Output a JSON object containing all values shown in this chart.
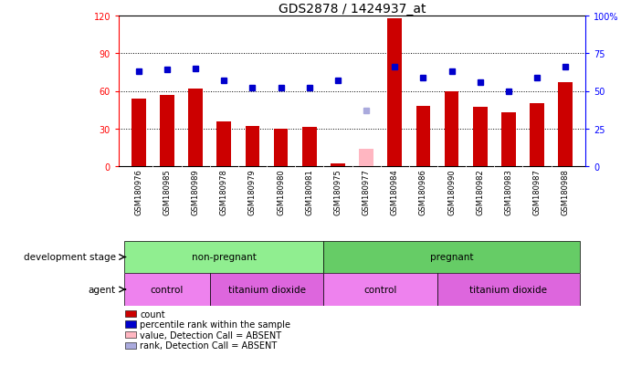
{
  "title": "GDS2878 / 1424937_at",
  "samples": [
    "GSM180976",
    "GSM180985",
    "GSM180989",
    "GSM180978",
    "GSM180979",
    "GSM180980",
    "GSM180981",
    "GSM180975",
    "GSM180977",
    "GSM180984",
    "GSM180986",
    "GSM180990",
    "GSM180982",
    "GSM180983",
    "GSM180987",
    "GSM180988"
  ],
  "counts": [
    54,
    57,
    62,
    36,
    32,
    30,
    31,
    2,
    0,
    118,
    48,
    60,
    47,
    43,
    50,
    67
  ],
  "ranks": [
    63,
    64,
    65,
    57,
    52,
    52,
    52,
    57,
    37,
    66,
    59,
    63,
    56,
    50,
    59,
    66
  ],
  "absent_count": [
    null,
    null,
    null,
    null,
    null,
    null,
    null,
    null,
    14,
    null,
    null,
    null,
    null,
    null,
    null,
    null
  ],
  "absent_rank": [
    null,
    null,
    null,
    null,
    null,
    null,
    null,
    null,
    37,
    null,
    null,
    null,
    null,
    null,
    null,
    null
  ],
  "is_absent": [
    false,
    false,
    false,
    false,
    false,
    false,
    false,
    false,
    true,
    false,
    false,
    false,
    false,
    false,
    false,
    false
  ],
  "ylim_left": [
    0,
    120
  ],
  "ylim_right": [
    0,
    100
  ],
  "yticks_left": [
    0,
    30,
    60,
    90,
    120
  ],
  "yticks_right": [
    0,
    25,
    50,
    75,
    100
  ],
  "ytick_labels_right": [
    "0",
    "25",
    "50",
    "75",
    "100%"
  ],
  "bar_color": "#cc0000",
  "absent_bar_color": "#ffb6c1",
  "rank_color": "#0000cc",
  "absent_rank_color": "#aaaadd",
  "non_pregnant_count": 7,
  "np_control_count": 3,
  "np_titanium_count": 4,
  "p_control_count": 4,
  "p_titanium_count": 5,
  "dev_color_nonpregnant": "#90ee90",
  "dev_color_pregnant": "#66cc66",
  "agent_control_color": "#ee82ee",
  "agent_titanium_color": "#dd66dd",
  "label_bg_color": "#c8c8c8",
  "title_fontsize": 10,
  "tick_fontsize": 7,
  "label_fontsize": 6,
  "bar_width": 0.5,
  "legend_items": [
    {
      "color": "#cc0000",
      "label": "count"
    },
    {
      "color": "#0000cc",
      "label": "percentile rank within the sample"
    },
    {
      "color": "#ffb6c1",
      "label": "value, Detection Call = ABSENT"
    },
    {
      "color": "#aaaadd",
      "label": "rank, Detection Call = ABSENT"
    }
  ]
}
